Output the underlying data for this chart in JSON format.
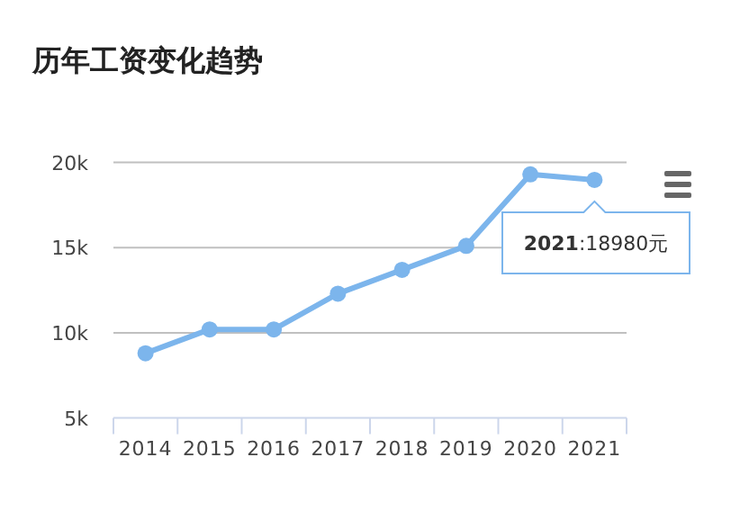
{
  "chart_data": {
    "type": "line",
    "title": "历年工资变化趋势",
    "categories": [
      "2014",
      "2015",
      "2016",
      "2017",
      "2018",
      "2019",
      "2020",
      "2021"
    ],
    "series": [
      {
        "color": "#7cb5ec",
        "values": [
          8800,
          10200,
          10200,
          12300,
          13700,
          15100,
          19300,
          18980
        ]
      }
    ],
    "ylim": [
      5000,
      20000
    ],
    "yticks": [
      {
        "value": 5000,
        "label": "5k"
      },
      {
        "value": 10000,
        "label": "10k"
      },
      {
        "value": 15000,
        "label": "15k"
      },
      {
        "value": 20000,
        "label": "20k"
      }
    ],
    "grid": "y",
    "marker": "circle",
    "line_style": "solid",
    "annotations": [
      {
        "text": "**2021**:18980元",
        "x": "2021",
        "y": 18980
      }
    ]
  }
}
